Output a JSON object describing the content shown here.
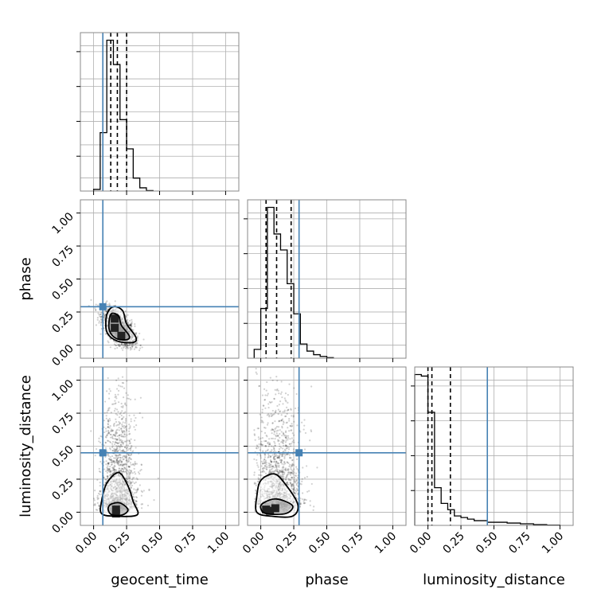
{
  "chart_data": {
    "type": "corner",
    "parameters": [
      "geocent_time",
      "phase",
      "luminosity_distance"
    ],
    "axis_range": [
      -0.1,
      1.1
    ],
    "tick_values": [
      0.0,
      0.25,
      0.5,
      0.75,
      1.0
    ],
    "tick_labels": [
      "0.00",
      "0.25",
      "0.50",
      "0.75",
      "1.00"
    ],
    "grid": true,
    "colors": {
      "truth": "#4682b4",
      "hist": "#000000",
      "points": "#000000",
      "frame": "#888888"
    },
    "truths": {
      "geocent_time": 0.07,
      "phase": 0.29,
      "luminosity_distance": 0.45
    },
    "histograms": [
      {
        "parameter": "geocent_time",
        "bin_edges": [
          0.0,
          0.05,
          0.1,
          0.15,
          0.2,
          0.25,
          0.3,
          0.35,
          0.4,
          0.45
        ],
        "counts": [
          0.01,
          0.36,
          0.93,
          0.78,
          0.44,
          0.26,
          0.08,
          0.02,
          0.003
        ],
        "quantiles": [
          0.13,
          0.18,
          0.25
        ]
      },
      {
        "parameter": "phase",
        "bin_edges": [
          -0.05,
          0.0,
          0.05,
          0.1,
          0.15,
          0.2,
          0.25,
          0.3,
          0.35,
          0.4,
          0.45,
          0.5,
          0.55
        ],
        "counts": [
          0.05,
          0.28,
          0.85,
          0.7,
          0.61,
          0.42,
          0.25,
          0.08,
          0.04,
          0.02,
          0.01,
          0.003
        ],
        "quantiles": [
          0.04,
          0.12,
          0.23
        ]
      },
      {
        "parameter": "luminosity_distance",
        "bin_edges": [
          -0.1,
          -0.05,
          0.0,
          0.05,
          0.1,
          0.15,
          0.2,
          0.25,
          0.3,
          0.35,
          0.4,
          0.45,
          0.5,
          0.6,
          0.7,
          0.8,
          0.9,
          1.0
        ],
        "counts": [
          0.96,
          0.95,
          0.72,
          0.24,
          0.14,
          0.1,
          0.06,
          0.05,
          0.04,
          0.03,
          0.03,
          0.02,
          0.02,
          0.015,
          0.01,
          0.005,
          0.002
        ],
        "quantiles": [
          0.0,
          0.03,
          0.17
        ]
      }
    ],
    "scatter_panels": [
      {
        "x": "geocent_time",
        "y": "phase",
        "center": [
          0.19,
          0.13
        ],
        "spread": [
          0.06,
          0.07
        ],
        "correlation": -0.6,
        "contours": [
          [
            [
              0.15,
              0.29
            ],
            [
              0.22,
              0.26
            ],
            [
              0.25,
              0.16
            ],
            [
              0.32,
              0.06
            ],
            [
              0.3,
              0.02
            ],
            [
              0.18,
              0.03
            ],
            [
              0.1,
              0.1
            ],
            [
              0.1,
              0.23
            ]
          ],
          [
            [
              0.14,
              0.24
            ],
            [
              0.19,
              0.22
            ],
            [
              0.21,
              0.15
            ],
            [
              0.27,
              0.07
            ],
            [
              0.25,
              0.04
            ],
            [
              0.17,
              0.05
            ],
            [
              0.12,
              0.11
            ],
            [
              0.12,
              0.2
            ]
          ]
        ],
        "dense_blocks": [
          [
            0.16,
            0.13
          ],
          [
            0.21,
            0.07
          ],
          [
            0.16,
            0.2
          ]
        ]
      },
      {
        "x": "geocent_time",
        "y": "luminosity_distance",
        "center": [
          0.19,
          0.35
        ],
        "spread": [
          0.07,
          0.27
        ],
        "correlation": 0.0,
        "contours": [
          [
            [
              0.1,
              0.22
            ],
            [
              0.19,
              0.3
            ],
            [
              0.26,
              0.2
            ],
            [
              0.3,
              0.08
            ],
            [
              0.33,
              -0.02
            ],
            [
              0.16,
              -0.03
            ],
            [
              0.06,
              -0.01
            ],
            [
              0.06,
              0.08
            ]
          ],
          [
            [
              0.13,
              0.06
            ],
            [
              0.2,
              0.07
            ],
            [
              0.26,
              0.02
            ],
            [
              0.22,
              -0.02
            ],
            [
              0.14,
              -0.02
            ],
            [
              0.11,
              0.02
            ]
          ]
        ],
        "dense_blocks": [
          [
            0.17,
            0.02
          ],
          [
            0.17,
            -0.01
          ]
        ]
      },
      {
        "x": "phase",
        "y": "luminosity_distance",
        "center": [
          0.13,
          0.35
        ],
        "spread": [
          0.09,
          0.27
        ],
        "correlation": 0.0,
        "contours": [
          [
            [
              0.0,
              0.24
            ],
            [
              0.1,
              0.29
            ],
            [
              0.18,
              0.22
            ],
            [
              0.28,
              0.06
            ],
            [
              0.24,
              -0.03
            ],
            [
              0.08,
              -0.03
            ],
            [
              -0.03,
              0.0
            ],
            [
              -0.03,
              0.12
            ]
          ],
          [
            [
              0.02,
              0.07
            ],
            [
              0.12,
              0.1
            ],
            [
              0.24,
              0.05
            ],
            [
              0.19,
              -0.01
            ],
            [
              0.04,
              -0.01
            ],
            [
              0.0,
              0.03
            ]
          ]
        ],
        "dense_blocks": [
          [
            0.07,
            0.01
          ],
          [
            0.11,
            0.03
          ],
          [
            0.04,
            0.02
          ]
        ]
      }
    ]
  }
}
